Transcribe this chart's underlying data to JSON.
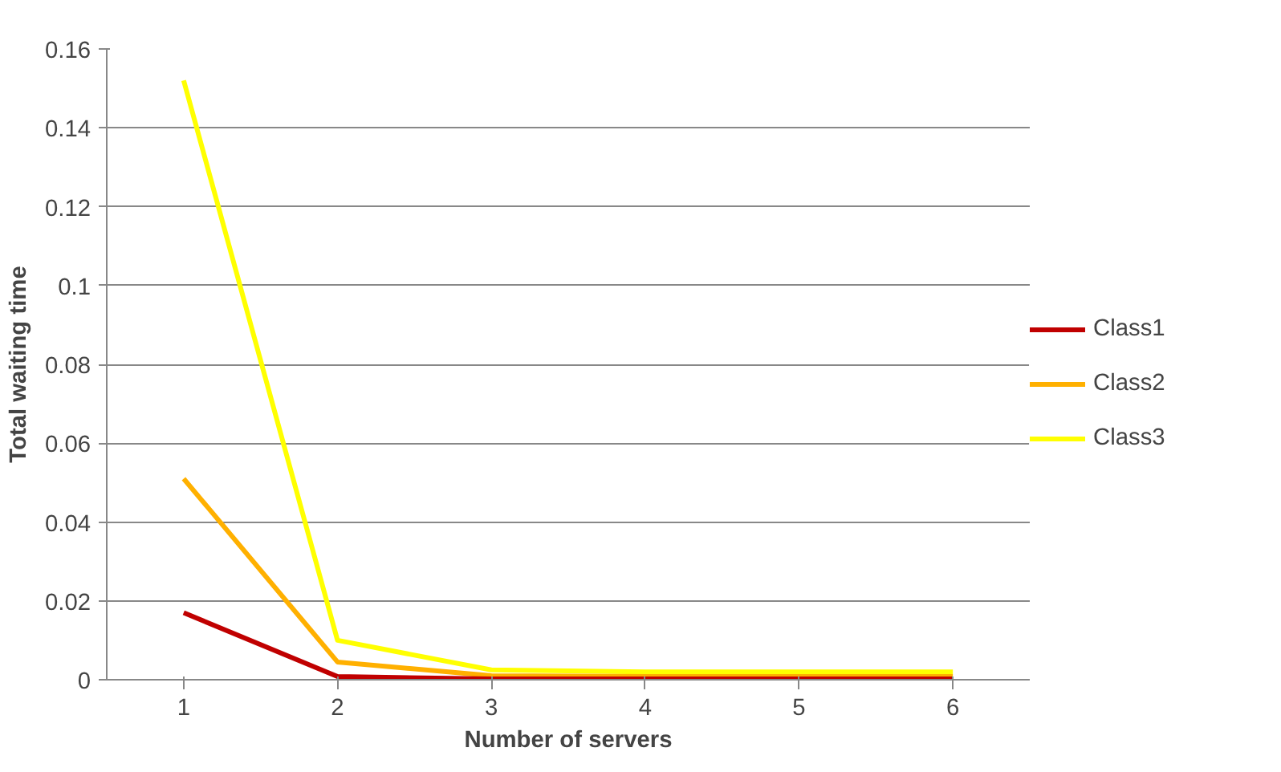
{
  "chart_data": {
    "type": "line",
    "xlabel": "Number of servers",
    "ylabel": "Total waiting time",
    "categories": [
      "1",
      "2",
      "3",
      "4",
      "5",
      "6"
    ],
    "series": [
      {
        "name": "Class1",
        "color": "#c00000",
        "values": [
          0.017,
          0.0008,
          0.0002,
          0.0002,
          0.0002,
          0.0002
        ]
      },
      {
        "name": "Class2",
        "color": "#ffb000",
        "values": [
          0.051,
          0.0045,
          0.001,
          0.0008,
          0.0008,
          0.0008
        ]
      },
      {
        "name": "Class3",
        "color": "#ffff00",
        "values": [
          0.152,
          0.01,
          0.0025,
          0.002,
          0.002,
          0.002
        ]
      }
    ],
    "ylim": [
      0,
      0.16
    ],
    "yticks": [
      0,
      0.02,
      0.04,
      0.06,
      0.08,
      0.1,
      0.12,
      0.14,
      0.16
    ],
    "grid": "y",
    "legend": "right",
    "marker": "none",
    "line_style": "solid"
  }
}
